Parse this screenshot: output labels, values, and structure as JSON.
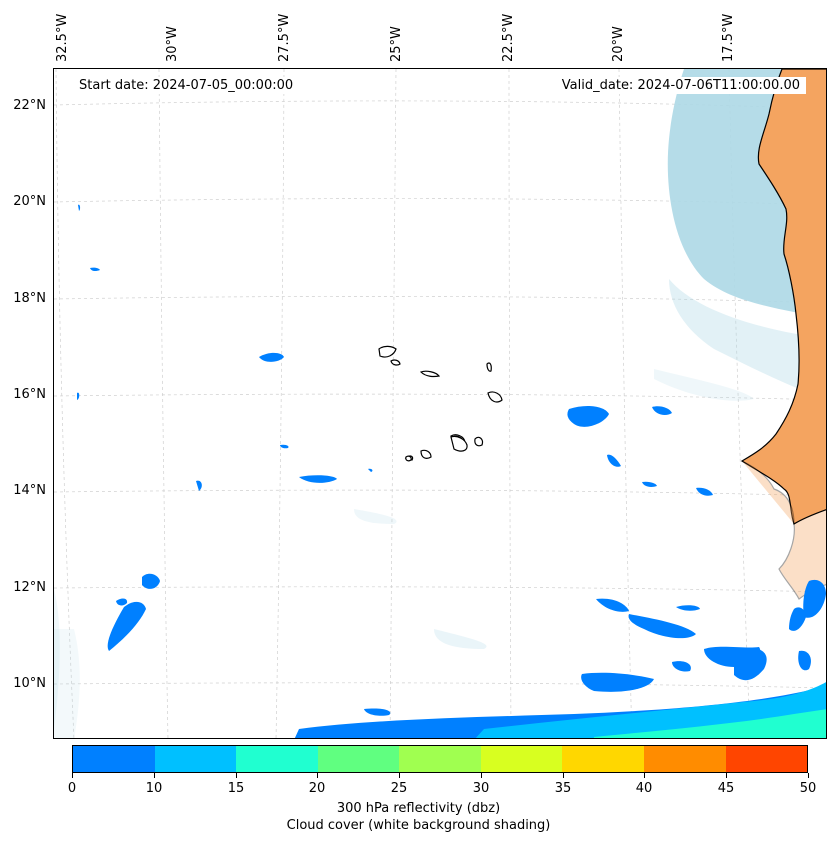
{
  "map": {
    "lon_labels": [
      "32.5°W",
      "30°W",
      "27.5°W",
      "25°W",
      "22.5°W",
      "20°W",
      "17.5°W"
    ],
    "lat_labels": [
      "22°N",
      "20°N",
      "18°N",
      "16°N",
      "14°N",
      "12°N",
      "10°N"
    ],
    "start_date": "Start date: 2024-07-05_00:00:00",
    "valid_date": "Valid_date: 2024-07-06T11:00:00.00",
    "land_color": "#f4a460",
    "cloud_color": "#add8e6",
    "ocean_color": "#ffffff",
    "coastline_color": "#000000",
    "gridlines": true
  },
  "colorbar": {
    "ticks": [
      "0",
      "10",
      "15",
      "20",
      "25",
      "30",
      "35",
      "40",
      "45",
      "50"
    ],
    "colors": [
      "#0080ff",
      "#00c0ff",
      "#20ffd0",
      "#60ff80",
      "#a0ff50",
      "#d8ff20",
      "#ffd700",
      "#ff8c00",
      "#ff4500"
    ],
    "title_line1": "300 hPa reflectivity (dbz)",
    "title_line2": "Cloud cover (white background shading)"
  }
}
